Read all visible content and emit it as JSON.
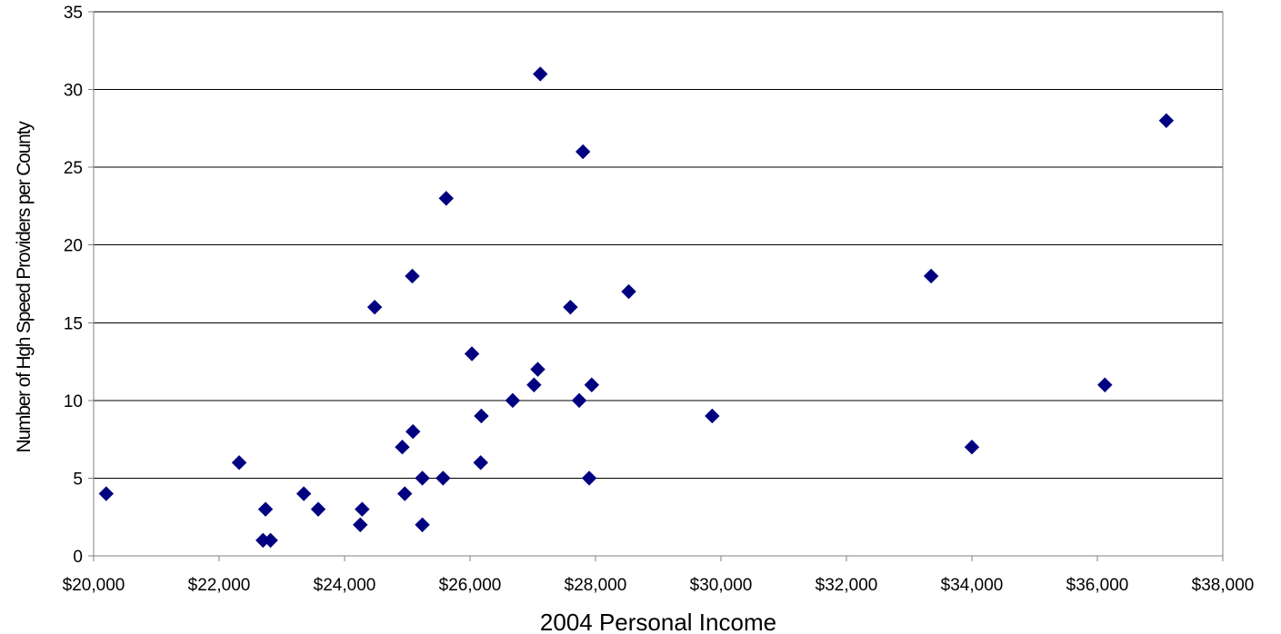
{
  "chart_data": {
    "type": "scatter",
    "title": "",
    "xlabel": "2004 Personal Income",
    "ylabel": "Number of Hgh Speed Providers per County",
    "xlim": [
      20000,
      38000
    ],
    "ylim": [
      0,
      35
    ],
    "x_ticks": [
      20000,
      22000,
      24000,
      26000,
      28000,
      30000,
      32000,
      34000,
      36000,
      38000
    ],
    "x_tick_labels": [
      "$20,000",
      "$22,000",
      "$24,000",
      "$26,000",
      "$28,000",
      "$30,000",
      "$32,000",
      "$34,000",
      "$36,000",
      "$38,000"
    ],
    "y_ticks": [
      0,
      5,
      10,
      15,
      20,
      25,
      30,
      35
    ],
    "y_tick_labels": [
      "0",
      "5",
      "10",
      "15",
      "20",
      "25",
      "30",
      "35"
    ],
    "grid": "horizontal",
    "marker": "diamond",
    "marker_color": "#000080",
    "points": [
      {
        "x": 20200,
        "y": 4
      },
      {
        "x": 22320,
        "y": 6
      },
      {
        "x": 22700,
        "y": 1
      },
      {
        "x": 22740,
        "y": 3
      },
      {
        "x": 22820,
        "y": 1
      },
      {
        "x": 23350,
        "y": 4
      },
      {
        "x": 23580,
        "y": 3
      },
      {
        "x": 24250,
        "y": 2
      },
      {
        "x": 24280,
        "y": 3
      },
      {
        "x": 24480,
        "y": 16
      },
      {
        "x": 24920,
        "y": 7
      },
      {
        "x": 24960,
        "y": 4
      },
      {
        "x": 25080,
        "y": 18
      },
      {
        "x": 25090,
        "y": 8
      },
      {
        "x": 25240,
        "y": 5
      },
      {
        "x": 25240,
        "y": 2
      },
      {
        "x": 25570,
        "y": 5
      },
      {
        "x": 25620,
        "y": 23
      },
      {
        "x": 26030,
        "y": 13
      },
      {
        "x": 26170,
        "y": 6
      },
      {
        "x": 26180,
        "y": 9
      },
      {
        "x": 26680,
        "y": 10
      },
      {
        "x": 27020,
        "y": 11
      },
      {
        "x": 27080,
        "y": 12
      },
      {
        "x": 27120,
        "y": 31
      },
      {
        "x": 27600,
        "y": 16
      },
      {
        "x": 27740,
        "y": 10
      },
      {
        "x": 27800,
        "y": 26
      },
      {
        "x": 27900,
        "y": 5
      },
      {
        "x": 27940,
        "y": 11
      },
      {
        "x": 28530,
        "y": 17
      },
      {
        "x": 29860,
        "y": 9
      },
      {
        "x": 33350,
        "y": 18
      },
      {
        "x": 34000,
        "y": 7
      },
      {
        "x": 36120,
        "y": 11
      },
      {
        "x": 37100,
        "y": 28
      }
    ]
  },
  "colors": {
    "gridline": "#000000",
    "axis": "#808080",
    "background": "#ffffff"
  }
}
